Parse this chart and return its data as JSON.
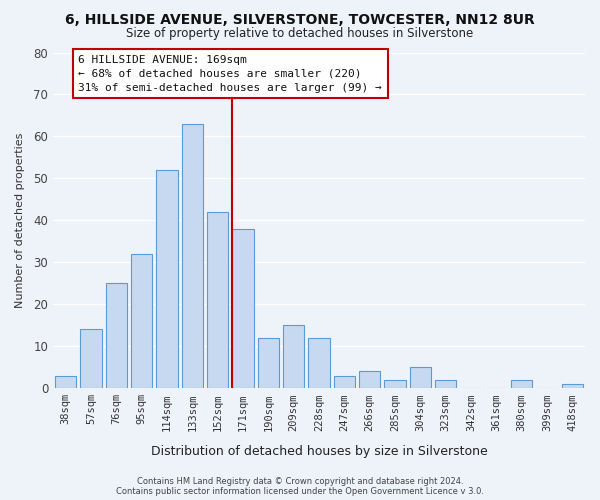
{
  "title": "6, HILLSIDE AVENUE, SILVERSTONE, TOWCESTER, NN12 8UR",
  "subtitle": "Size of property relative to detached houses in Silverstone",
  "xlabel": "Distribution of detached houses by size in Silverstone",
  "ylabel": "Number of detached properties",
  "bar_labels": [
    "38sqm",
    "57sqm",
    "76sqm",
    "95sqm",
    "114sqm",
    "133sqm",
    "152sqm",
    "171sqm",
    "190sqm",
    "209sqm",
    "228sqm",
    "247sqm",
    "266sqm",
    "285sqm",
    "304sqm",
    "323sqm",
    "342sqm",
    "361sqm",
    "380sqm",
    "399sqm",
    "418sqm"
  ],
  "bar_values": [
    3,
    14,
    25,
    32,
    52,
    63,
    42,
    38,
    12,
    15,
    12,
    3,
    4,
    2,
    5,
    2,
    0,
    0,
    2,
    0,
    1
  ],
  "bar_color": "#c6d9f0",
  "bar_edge_color": "#5b9bd5",
  "ylim": [
    0,
    80
  ],
  "yticks": [
    0,
    10,
    20,
    30,
    40,
    50,
    60,
    70,
    80
  ],
  "annotation_title": "6 HILLSIDE AVENUE: 169sqm",
  "annotation_line1": "← 68% of detached houses are smaller (220)",
  "annotation_line2": "31% of semi-detached houses are larger (99) →",
  "footer1": "Contains HM Land Registry data © Crown copyright and database right 2024.",
  "footer2": "Contains public sector information licensed under the Open Government Licence v 3.0.",
  "background_color": "#eef2f9",
  "plot_bg_color": "#eef2f9",
  "grid_color": "#ffffff",
  "annotation_box_edge": "#c00000",
  "property_line_color": "#c00000",
  "property_line_x": 7.5
}
